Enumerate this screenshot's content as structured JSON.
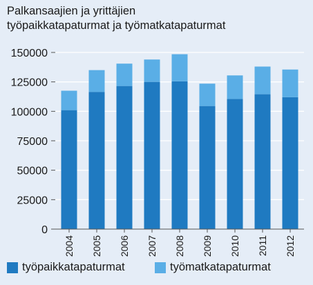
{
  "chart_data": {
    "type": "bar",
    "stacked": true,
    "title_lines": [
      "Palkansaajien ja yrittäjien",
      "työpaikkatapaturmat ja työmatkatapaturmat"
    ],
    "categories": [
      "2004",
      "2005",
      "2006",
      "2007",
      "2008",
      "2009",
      "2010",
      "2011",
      "2012"
    ],
    "series": [
      {
        "name": "työpaikkatapaturmat",
        "color": "#1f7ac1",
        "values": [
          101000,
          116500,
          121500,
          125000,
          125500,
          104500,
          110500,
          114500,
          112000
        ]
      },
      {
        "name": "työmatkatapaturmat",
        "color": "#5aaee6",
        "values": [
          16500,
          18500,
          19000,
          19000,
          23000,
          19000,
          20000,
          23500,
          23500
        ]
      }
    ],
    "ylim": [
      0,
      150000
    ],
    "yticks": [
      "0",
      "25000",
      "50000",
      "75000",
      "100000",
      "125000",
      "150000"
    ],
    "grid": true,
    "legend_position": "bottom"
  },
  "colors": {
    "background": "#e5edf7",
    "grid": "#ffffff",
    "axis": "#555555"
  }
}
